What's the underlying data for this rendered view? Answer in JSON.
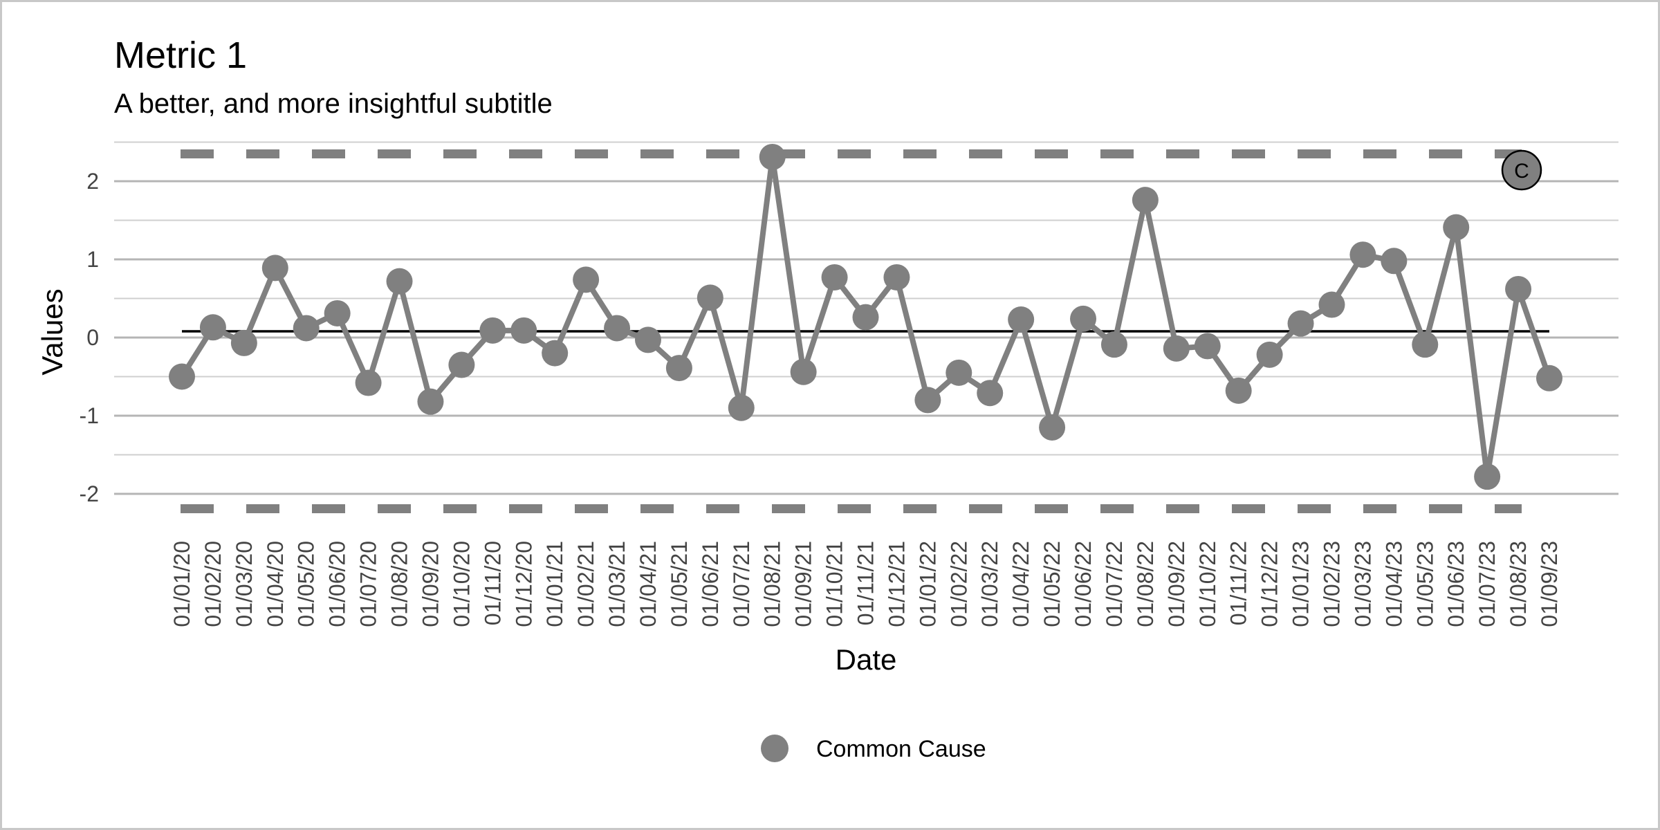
{
  "chart_data": {
    "type": "line",
    "title": "Metric 1",
    "subtitle": "A better, and more insightful subtitle",
    "xlabel": "Date",
    "ylabel": "Values",
    "ylim": [
      -2.2,
      2.5
    ],
    "yticks": [
      2,
      1,
      0,
      -1,
      -2
    ],
    "ytick_labels": [
      "2",
      "1",
      "0",
      "-1",
      "-2"
    ],
    "grid": true,
    "categories": [
      "01/01/20",
      "01/02/20",
      "01/03/20",
      "01/04/20",
      "01/05/20",
      "01/06/20",
      "01/07/20",
      "01/08/20",
      "01/09/20",
      "01/10/20",
      "01/11/20",
      "01/12/20",
      "01/01/21",
      "01/02/21",
      "01/03/21",
      "01/04/21",
      "01/05/21",
      "01/06/21",
      "01/07/21",
      "01/08/21",
      "01/09/21",
      "01/10/21",
      "01/11/21",
      "01/12/21",
      "01/01/22",
      "01/02/22",
      "01/03/22",
      "01/04/22",
      "01/05/22",
      "01/06/22",
      "01/07/22",
      "01/08/22",
      "01/09/22",
      "01/10/22",
      "01/11/22",
      "01/12/22",
      "01/01/23",
      "01/02/23",
      "01/03/23",
      "01/04/23",
      "01/05/23",
      "01/06/23",
      "01/07/23",
      "01/08/23",
      "01/09/23"
    ],
    "series": [
      {
        "name": "Common Cause",
        "color": "#808080",
        "values": [
          -0.5,
          0.13,
          -0.07,
          0.89,
          0.12,
          0.31,
          -0.58,
          0.72,
          -0.82,
          -0.35,
          0.09,
          0.09,
          -0.2,
          0.74,
          0.12,
          -0.03,
          -0.39,
          0.51,
          -0.9,
          2.31,
          -0.44,
          0.77,
          0.26,
          0.77,
          -0.8,
          -0.45,
          -0.71,
          0.23,
          -1.15,
          0.24,
          -0.09,
          1.76,
          -0.14,
          -0.11,
          -0.68,
          -0.22,
          0.18,
          0.42,
          1.06,
          0.98,
          -0.09,
          1.41,
          -1.78,
          0.62,
          -0.52
        ]
      }
    ],
    "center_line": 0.08,
    "upper_control_limit": 2.35,
    "lower_control_limit": -2.19,
    "limit_color": "#808080",
    "badge": {
      "label": "C",
      "color": "#808080"
    },
    "legend": {
      "placement": "bottom",
      "entries": [
        "Common Cause"
      ]
    }
  }
}
